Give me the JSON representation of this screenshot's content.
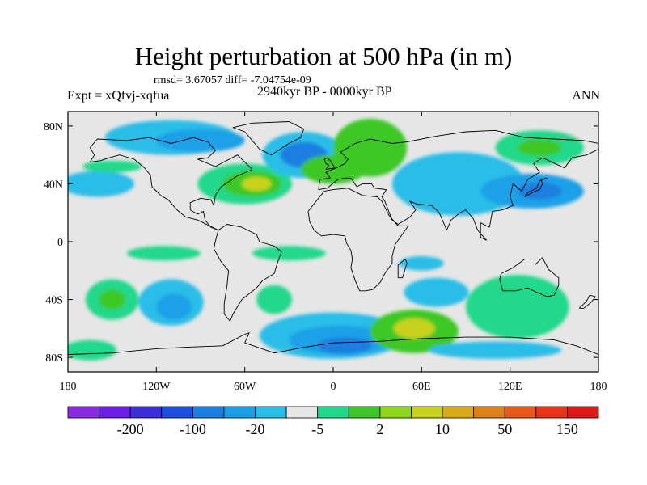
{
  "figure": {
    "title": "Height perturbation at 500 hPa (in m)",
    "stats_text": "rmsd= 3.67057 diff= -7.04754e-09",
    "experiment": "Expt = xQfvj-xqfua",
    "period": "2940kyr BP - 0000kyr BP",
    "season": "ANN"
  },
  "axes": {
    "lat_labels": [
      "80N",
      "40N",
      "0",
      "40S",
      "80S"
    ],
    "lat_values": [
      80,
      40,
      0,
      -40,
      -80
    ],
    "lon_labels": [
      "180",
      "120W",
      "60W",
      "0",
      "60E",
      "120E",
      "180"
    ],
    "lon_values": [
      -180,
      -120,
      -60,
      0,
      60,
      120,
      180
    ],
    "lat_range": [
      -90,
      90
    ],
    "lon_range": [
      -180,
      180
    ]
  },
  "colorbar": {
    "colors": [
      "#8a2be2",
      "#6a1ee8",
      "#3b2ed6",
      "#1f4fe0",
      "#1a7fe0",
      "#1ba0e8",
      "#2bbde8",
      "#e6e6e6",
      "#23d88a",
      "#3ec828",
      "#8ed61e",
      "#c8d21c",
      "#d9a81a",
      "#e0801a",
      "#e85a18",
      "#e8361a",
      "#e01a1a"
    ],
    "labels": [
      "-200",
      "-100",
      "-20",
      "-5",
      "2",
      "10",
      "50",
      "150"
    ],
    "label_after_box": [
      1,
      3,
      5,
      7,
      9,
      11,
      13,
      15
    ]
  },
  "field": {
    "background": "#e6e6e6",
    "anomalies": [
      {
        "lon": -160,
        "lat": 40,
        "rlon": 25,
        "rlat": 9,
        "color": "#2bbde8"
      },
      {
        "lon": -150,
        "lat": 52,
        "rlon": 20,
        "rlat": 4,
        "color": "#23d88a"
      },
      {
        "lon": -110,
        "lat": 72,
        "rlon": 45,
        "rlat": 12,
        "color": "#2bbde8"
      },
      {
        "lon": -90,
        "lat": 70,
        "rlon": 30,
        "rlat": 8,
        "color": "#1ba0e8"
      },
      {
        "lon": -60,
        "lat": 40,
        "rlon": 32,
        "rlat": 14,
        "color": "#23d88a"
      },
      {
        "lon": -55,
        "lat": 40,
        "rlon": 20,
        "rlat": 9,
        "color": "#3ec828"
      },
      {
        "lon": -52,
        "lat": 40,
        "rlon": 10,
        "rlat": 5,
        "color": "#c8d21c"
      },
      {
        "lon": -20,
        "lat": 60,
        "rlon": 28,
        "rlat": 16,
        "color": "#2bbde8"
      },
      {
        "lon": -20,
        "lat": 60,
        "rlon": 16,
        "rlat": 9,
        "color": "#1a7fe0"
      },
      {
        "lon": 25,
        "lat": 65,
        "rlon": 25,
        "rlat": 20,
        "color": "#3ec828"
      },
      {
        "lon": 0,
        "lat": 50,
        "rlon": 22,
        "rlat": 10,
        "color": "#3ec828"
      },
      {
        "lon": 85,
        "lat": 40,
        "rlon": 45,
        "rlat": 22,
        "color": "#2bbde8"
      },
      {
        "lon": 135,
        "lat": 35,
        "rlon": 35,
        "rlat": 12,
        "color": "#1ba0e8"
      },
      {
        "lon": 140,
        "lat": 35,
        "rlon": 15,
        "rlat": 6,
        "color": "#1a7fe0"
      },
      {
        "lon": 140,
        "lat": 65,
        "rlon": 30,
        "rlat": 12,
        "color": "#23d88a"
      },
      {
        "lon": 140,
        "lat": 65,
        "rlon": 15,
        "rlat": 6,
        "color": "#3ec828"
      },
      {
        "lon": -150,
        "lat": -40,
        "rlon": 18,
        "rlat": 14,
        "color": "#23d88a"
      },
      {
        "lon": -150,
        "lat": -40,
        "rlon": 9,
        "rlat": 7,
        "color": "#3ec828"
      },
      {
        "lon": -165,
        "lat": -75,
        "rlon": 18,
        "rlat": 7,
        "color": "#23d88a"
      },
      {
        "lon": -110,
        "lat": -42,
        "rlon": 22,
        "rlat": 16,
        "color": "#2bbde8"
      },
      {
        "lon": -108,
        "lat": -45,
        "rlon": 12,
        "rlat": 9,
        "color": "#1ba0e8"
      },
      {
        "lon": -40,
        "lat": -40,
        "rlon": 12,
        "rlat": 10,
        "color": "#23d88a"
      },
      {
        "lon": -30,
        "lat": -8,
        "rlon": 25,
        "rlat": 5,
        "color": "#23d88a"
      },
      {
        "lon": -115,
        "lat": -8,
        "rlon": 25,
        "rlat": 5,
        "color": "#23d88a"
      },
      {
        "lon": 0,
        "lat": -65,
        "rlon": 50,
        "rlat": 16,
        "color": "#2bbde8"
      },
      {
        "lon": 5,
        "lat": -68,
        "rlon": 35,
        "rlat": 10,
        "color": "#1ba0e8"
      },
      {
        "lon": 8,
        "lat": -72,
        "rlon": 18,
        "rlat": 6,
        "color": "#1a7fe0"
      },
      {
        "lon": 70,
        "lat": -35,
        "rlon": 22,
        "rlat": 10,
        "color": "#2bbde8"
      },
      {
        "lon": 55,
        "lat": -62,
        "rlon": 30,
        "rlat": 15,
        "color": "#3ec828"
      },
      {
        "lon": 55,
        "lat": -60,
        "rlon": 14,
        "rlat": 7,
        "color": "#c8d21c"
      },
      {
        "lon": 125,
        "lat": -45,
        "rlon": 35,
        "rlat": 22,
        "color": "#23d88a"
      },
      {
        "lon": 110,
        "lat": -75,
        "rlon": 45,
        "rlat": 6,
        "color": "#2bbde8"
      },
      {
        "lon": 60,
        "lat": -15,
        "rlon": 15,
        "rlat": 5,
        "color": "#2bbde8"
      }
    ]
  },
  "coastlines": [
    {
      "name": "north-america",
      "points": [
        [
          -165,
          65
        ],
        [
          -160,
          71
        ],
        [
          -140,
          70
        ],
        [
          -125,
          72
        ],
        [
          -110,
          68
        ],
        [
          -95,
          72
        ],
        [
          -85,
          69
        ],
        [
          -80,
          63
        ],
        [
          -85,
          58
        ],
        [
          -92,
          57
        ],
        [
          -80,
          52
        ],
        [
          -65,
          60
        ],
        [
          -60,
          55
        ],
        [
          -55,
          50
        ],
        [
          -66,
          45
        ],
        [
          -70,
          42
        ],
        [
          -76,
          38
        ],
        [
          -80,
          32
        ],
        [
          -81,
          25
        ],
        [
          -83,
          29
        ],
        [
          -90,
          30
        ],
        [
          -97,
          27
        ],
        [
          -97,
          22
        ],
        [
          -92,
          19
        ],
        [
          -88,
          21
        ],
        [
          -87,
          15
        ],
        [
          -83,
          10
        ],
        [
          -78,
          8
        ],
        [
          -80,
          9
        ],
        [
          -86,
          12
        ],
        [
          -92,
          15
        ],
        [
          -100,
          17
        ],
        [
          -106,
          22
        ],
        [
          -112,
          29
        ],
        [
          -117,
          32
        ],
        [
          -123,
          38
        ],
        [
          -124,
          46
        ],
        [
          -128,
          51
        ],
        [
          -135,
          57
        ],
        [
          -145,
          60
        ],
        [
          -152,
          58
        ],
        [
          -158,
          56
        ],
        [
          -165,
          55
        ],
        [
          -162,
          60
        ],
        [
          -165,
          65
        ]
      ]
    },
    {
      "name": "greenland",
      "points": [
        [
          -55,
          82
        ],
        [
          -30,
          83
        ],
        [
          -20,
          78
        ],
        [
          -22,
          72
        ],
        [
          -30,
          68
        ],
        [
          -42,
          60
        ],
        [
          -50,
          64
        ],
        [
          -55,
          70
        ],
        [
          -60,
          76
        ],
        [
          -68,
          79
        ],
        [
          -55,
          82
        ]
      ]
    },
    {
      "name": "south-america",
      "points": [
        [
          -78,
          8
        ],
        [
          -72,
          12
        ],
        [
          -62,
          10
        ],
        [
          -52,
          5
        ],
        [
          -50,
          0
        ],
        [
          -40,
          -3
        ],
        [
          -35,
          -7
        ],
        [
          -38,
          -15
        ],
        [
          -40,
          -22
        ],
        [
          -48,
          -27
        ],
        [
          -52,
          -32
        ],
        [
          -57,
          -36
        ],
        [
          -62,
          -40
        ],
        [
          -65,
          -45
        ],
        [
          -68,
          -50
        ],
        [
          -70,
          -55
        ],
        [
          -74,
          -50
        ],
        [
          -74,
          -43
        ],
        [
          -72,
          -30
        ],
        [
          -71,
          -20
        ],
        [
          -76,
          -14
        ],
        [
          -81,
          -5
        ],
        [
          -80,
          0
        ],
        [
          -78,
          8
        ]
      ]
    },
    {
      "name": "africa",
      "points": [
        [
          -17,
          21
        ],
        [
          -16,
          14
        ],
        [
          -13,
          8
        ],
        [
          -8,
          4
        ],
        [
          0,
          5
        ],
        [
          8,
          4
        ],
        [
          9,
          -1
        ],
        [
          12,
          -6
        ],
        [
          13,
          -12
        ],
        [
          12,
          -18
        ],
        [
          15,
          -27
        ],
        [
          18,
          -34
        ],
        [
          22,
          -34
        ],
        [
          27,
          -33
        ],
        [
          32,
          -28
        ],
        [
          35,
          -22
        ],
        [
          40,
          -15
        ],
        [
          40,
          -10
        ],
        [
          42,
          -2
        ],
        [
          51,
          11
        ],
        [
          44,
          11
        ],
        [
          38,
          18
        ],
        [
          33,
          28
        ],
        [
          30,
          31
        ],
        [
          20,
          32
        ],
        [
          10,
          37
        ],
        [
          0,
          36
        ],
        [
          -6,
          35
        ],
        [
          -10,
          30
        ],
        [
          -17,
          21
        ]
      ]
    },
    {
      "name": "eurasia",
      "points": [
        [
          -10,
          36
        ],
        [
          -9,
          43
        ],
        [
          -2,
          44
        ],
        [
          -5,
          48
        ],
        [
          2,
          51
        ],
        [
          8,
          54
        ],
        [
          10,
          57
        ],
        [
          5,
          62
        ],
        [
          15,
          68
        ],
        [
          25,
          71
        ],
        [
          40,
          68
        ],
        [
          50,
          69
        ],
        [
          70,
          73
        ],
        [
          90,
          76
        ],
        [
          110,
          77
        ],
        [
          130,
          72
        ],
        [
          150,
          71
        ],
        [
          170,
          70
        ],
        [
          180,
          68
        ],
        [
          180,
          64
        ],
        [
          172,
          60
        ],
        [
          162,
          58
        ],
        [
          157,
          51
        ],
        [
          142,
          58
        ],
        [
          136,
          54
        ],
        [
          140,
          48
        ],
        [
          132,
          43
        ],
        [
          128,
          35
        ],
        [
          122,
          40
        ],
        [
          120,
          31
        ],
        [
          122,
          25
        ],
        [
          115,
          22
        ],
        [
          108,
          21
        ],
        [
          106,
          10
        ],
        [
          100,
          13
        ],
        [
          100,
          3
        ],
        [
          104,
          1
        ],
        [
          98,
          8
        ],
        [
          95,
          16
        ],
        [
          90,
          22
        ],
        [
          86,
          20
        ],
        [
          80,
          15
        ],
        [
          77,
          8
        ],
        [
          72,
          20
        ],
        [
          67,
          25
        ],
        [
          57,
          26
        ],
        [
          52,
          28
        ],
        [
          56,
          22
        ],
        [
          52,
          17
        ],
        [
          44,
          12
        ],
        [
          40,
          15
        ],
        [
          35,
          28
        ],
        [
          33,
          31
        ],
        [
          36,
          36
        ],
        [
          28,
          37
        ],
        [
          26,
          40
        ],
        [
          20,
          40
        ],
        [
          16,
          38
        ],
        [
          12,
          44
        ],
        [
          8,
          44
        ],
        [
          3,
          43
        ],
        [
          -4,
          37
        ],
        [
          -10,
          36
        ]
      ]
    },
    {
      "name": "australia",
      "points": [
        [
          114,
          -22
        ],
        [
          122,
          -18
        ],
        [
          130,
          -12
        ],
        [
          137,
          -12
        ],
        [
          137,
          -16
        ],
        [
          142,
          -11
        ],
        [
          146,
          -19
        ],
        [
          153,
          -25
        ],
        [
          153,
          -30
        ],
        [
          150,
          -37
        ],
        [
          145,
          -38
        ],
        [
          138,
          -35
        ],
        [
          132,
          -32
        ],
        [
          124,
          -34
        ],
        [
          115,
          -34
        ],
        [
          113,
          -26
        ],
        [
          114,
          -22
        ]
      ]
    },
    {
      "name": "uk",
      "points": [
        [
          -5,
          50
        ],
        [
          1,
          51
        ],
        [
          0,
          53
        ],
        [
          -2,
          56
        ],
        [
          -4,
          58
        ],
        [
          -6,
          57
        ],
        [
          -5,
          54
        ],
        [
          -3,
          53
        ],
        [
          -5,
          50
        ]
      ]
    },
    {
      "name": "japan",
      "points": [
        [
          130,
          31
        ],
        [
          135,
          34
        ],
        [
          140,
          36
        ],
        [
          142,
          40
        ],
        [
          141,
          43
        ],
        [
          145,
          44
        ],
        [
          140,
          42
        ],
        [
          138,
          37
        ],
        [
          132,
          34
        ],
        [
          130,
          31
        ]
      ]
    },
    {
      "name": "madagascar",
      "points": [
        [
          44,
          -25
        ],
        [
          47,
          -25
        ],
        [
          50,
          -15
        ],
        [
          49,
          -12
        ],
        [
          44,
          -16
        ],
        [
          44,
          -25
        ]
      ]
    },
    {
      "name": "new-zealand",
      "points": [
        [
          167,
          -46
        ],
        [
          172,
          -41
        ],
        [
          174,
          -37
        ],
        [
          178,
          -38
        ],
        [
          175,
          -42
        ],
        [
          170,
          -46
        ],
        [
          167,
          -46
        ]
      ]
    },
    {
      "name": "antarctica",
      "points": [
        [
          -180,
          -78
        ],
        [
          -150,
          -77
        ],
        [
          -120,
          -74
        ],
        [
          -100,
          -73
        ],
        [
          -75,
          -72
        ],
        [
          -60,
          -64
        ],
        [
          -57,
          -63
        ],
        [
          -60,
          -70
        ],
        [
          -40,
          -77
        ],
        [
          -20,
          -73
        ],
        [
          0,
          -70
        ],
        [
          30,
          -69
        ],
        [
          60,
          -67
        ],
        [
          90,
          -66
        ],
        [
          120,
          -66
        ],
        [
          150,
          -68
        ],
        [
          165,
          -72
        ],
        [
          180,
          -78
        ]
      ]
    }
  ]
}
